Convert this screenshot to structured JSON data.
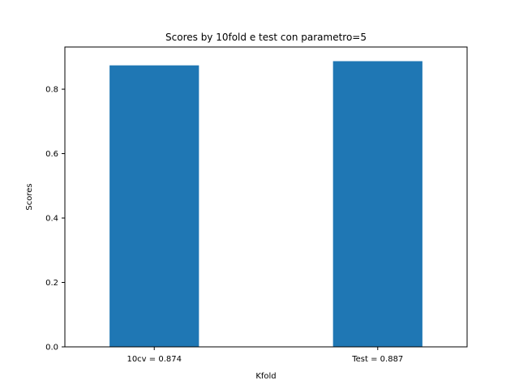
{
  "chart_data": {
    "type": "bar",
    "title": "Scores by 10fold e test con parametro=5",
    "xlabel": "Kfold",
    "ylabel": "Scores",
    "categories": [
      "10cv = 0.874",
      "Test = 0.887"
    ],
    "values": [
      0.874,
      0.887
    ],
    "ylim": [
      0,
      0.931
    ],
    "yticks": [
      0.0,
      0.2,
      0.4,
      0.6,
      0.8
    ],
    "ytick_labels": [
      "0.0",
      "0.2",
      "0.4",
      "0.6",
      "0.8"
    ],
    "bar_color": "#1f77b4",
    "grid": false,
    "legend": "none"
  }
}
